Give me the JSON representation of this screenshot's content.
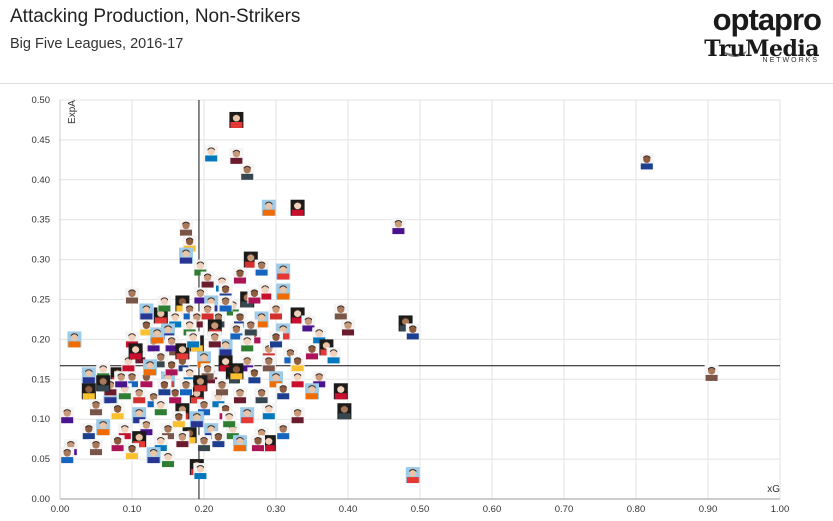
{
  "header": {
    "title": "Attacking Production, Non-Strikers",
    "subtitle": "Big Five Leagues, 2016-17",
    "brand_top": "optapro",
    "brand_mid": "TruMedia",
    "brand_bottom": "NETWORKS"
  },
  "chart_data": {
    "type": "scatter",
    "xlabel": "xG",
    "ylabel": "ExpA",
    "xlim": [
      0,
      1.0
    ],
    "ylim": [
      0,
      0.5
    ],
    "xticks": [
      "0.00",
      "0.10",
      "0.20",
      "0.30",
      "0.40",
      "0.50",
      "0.60",
      "0.70",
      "0.80",
      "0.90",
      "1.00"
    ],
    "yticks": [
      "0.00",
      "0.05",
      "0.10",
      "0.15",
      "0.20",
      "0.25",
      "0.30",
      "0.35",
      "0.40",
      "0.45",
      "0.50"
    ],
    "grid": true,
    "reference_lines": {
      "x": 0.193,
      "y": 0.167
    },
    "marker": "player-headshot",
    "points": [
      [
        0.245,
        0.475
      ],
      [
        0.21,
        0.433
      ],
      [
        0.245,
        0.43
      ],
      [
        0.26,
        0.41
      ],
      [
        0.815,
        0.423
      ],
      [
        0.29,
        0.365
      ],
      [
        0.33,
        0.365
      ],
      [
        0.47,
        0.342
      ],
      [
        0.175,
        0.34
      ],
      [
        0.18,
        0.32
      ],
      [
        0.175,
        0.305
      ],
      [
        0.195,
        0.29
      ],
      [
        0.265,
        0.3
      ],
      [
        0.28,
        0.29
      ],
      [
        0.25,
        0.28
      ],
      [
        0.31,
        0.285
      ],
      [
        0.225,
        0.27
      ],
      [
        0.205,
        0.275
      ],
      [
        0.26,
        0.25
      ],
      [
        0.23,
        0.26
      ],
      [
        0.31,
        0.26
      ],
      [
        0.285,
        0.26
      ],
      [
        0.195,
        0.255
      ],
      [
        0.1,
        0.255
      ],
      [
        0.17,
        0.245
      ],
      [
        0.21,
        0.245
      ],
      [
        0.24,
        0.24
      ],
      [
        0.3,
        0.235
      ],
      [
        0.18,
        0.235
      ],
      [
        0.12,
        0.23
      ],
      [
        0.14,
        0.23
      ],
      [
        0.16,
        0.225
      ],
      [
        0.19,
        0.225
      ],
      [
        0.22,
        0.225
      ],
      [
        0.25,
        0.225
      ],
      [
        0.28,
        0.225
      ],
      [
        0.33,
        0.23
      ],
      [
        0.345,
        0.22
      ],
      [
        0.39,
        0.235
      ],
      [
        0.12,
        0.215
      ],
      [
        0.15,
        0.21
      ],
      [
        0.18,
        0.215
      ],
      [
        0.215,
        0.215
      ],
      [
        0.245,
        0.21
      ],
      [
        0.27,
        0.205
      ],
      [
        0.31,
        0.21
      ],
      [
        0.36,
        0.205
      ],
      [
        0.4,
        0.215
      ],
      [
        0.48,
        0.22
      ],
      [
        0.49,
        0.21
      ],
      [
        0.02,
        0.2
      ],
      [
        0.1,
        0.2
      ],
      [
        0.13,
        0.195
      ],
      [
        0.16,
        0.19
      ],
      [
        0.19,
        0.195
      ],
      [
        0.23,
        0.19
      ],
      [
        0.26,
        0.195
      ],
      [
        0.29,
        0.185
      ],
      [
        0.32,
        0.18
      ],
      [
        0.35,
        0.185
      ],
      [
        0.37,
        0.19
      ],
      [
        0.38,
        0.18
      ],
      [
        0.11,
        0.18
      ],
      [
        0.14,
        0.175
      ],
      [
        0.17,
        0.17
      ],
      [
        0.2,
        0.175
      ],
      [
        0.23,
        0.17
      ],
      [
        0.26,
        0.17
      ],
      [
        0.29,
        0.17
      ],
      [
        0.33,
        0.17
      ],
      [
        0.04,
        0.155
      ],
      [
        0.06,
        0.16
      ],
      [
        0.08,
        0.155
      ],
      [
        0.1,
        0.15
      ],
      [
        0.12,
        0.15
      ],
      [
        0.15,
        0.15
      ],
      [
        0.18,
        0.155
      ],
      [
        0.21,
        0.155
      ],
      [
        0.24,
        0.155
      ],
      [
        0.27,
        0.155
      ],
      [
        0.3,
        0.15
      ],
      [
        0.33,
        0.15
      ],
      [
        0.36,
        0.15
      ],
      [
        0.905,
        0.158
      ],
      [
        0.04,
        0.135
      ],
      [
        0.07,
        0.13
      ],
      [
        0.09,
        0.135
      ],
      [
        0.11,
        0.13
      ],
      [
        0.13,
        0.125
      ],
      [
        0.16,
        0.13
      ],
      [
        0.19,
        0.13
      ],
      [
        0.22,
        0.125
      ],
      [
        0.25,
        0.13
      ],
      [
        0.28,
        0.13
      ],
      [
        0.31,
        0.135
      ],
      [
        0.35,
        0.135
      ],
      [
        0.39,
        0.135
      ],
      [
        0.01,
        0.105
      ],
      [
        0.05,
        0.115
      ],
      [
        0.08,
        0.11
      ],
      [
        0.11,
        0.105
      ],
      [
        0.14,
        0.115
      ],
      [
        0.17,
        0.11
      ],
      [
        0.2,
        0.115
      ],
      [
        0.23,
        0.11
      ],
      [
        0.26,
        0.105
      ],
      [
        0.29,
        0.11
      ],
      [
        0.33,
        0.105
      ],
      [
        0.395,
        0.11
      ],
      [
        0.04,
        0.085
      ],
      [
        0.06,
        0.09
      ],
      [
        0.09,
        0.085
      ],
      [
        0.12,
        0.09
      ],
      [
        0.15,
        0.085
      ],
      [
        0.18,
        0.08
      ],
      [
        0.21,
        0.085
      ],
      [
        0.24,
        0.085
      ],
      [
        0.28,
        0.08
      ],
      [
        0.31,
        0.085
      ],
      [
        0.08,
        0.07
      ],
      [
        0.11,
        0.075
      ],
      [
        0.14,
        0.07
      ],
      [
        0.17,
        0.075
      ],
      [
        0.2,
        0.07
      ],
      [
        0.22,
        0.075
      ],
      [
        0.25,
        0.07
      ],
      [
        0.29,
        0.07
      ],
      [
        0.015,
        0.065
      ],
      [
        0.05,
        0.065
      ],
      [
        0.1,
        0.06
      ],
      [
        0.13,
        0.055
      ],
      [
        0.15,
        0.05
      ],
      [
        0.19,
        0.04
      ],
      [
        0.01,
        0.055
      ],
      [
        0.275,
        0.07
      ],
      [
        0.49,
        0.03
      ],
      [
        0.195,
        0.035
      ],
      [
        0.07,
        0.14
      ],
      [
        0.06,
        0.145
      ],
      [
        0.145,
        0.14
      ],
      [
        0.125,
        0.165
      ],
      [
        0.095,
        0.17
      ],
      [
        0.155,
        0.195
      ],
      [
        0.205,
        0.16
      ],
      [
        0.245,
        0.16
      ],
      [
        0.12,
        0.235
      ],
      [
        0.145,
        0.245
      ],
      [
        0.205,
        0.235
      ],
      [
        0.23,
        0.245
      ],
      [
        0.27,
        0.255
      ],
      [
        0.17,
        0.185
      ],
      [
        0.185,
        0.2
      ],
      [
        0.215,
        0.2
      ],
      [
        0.265,
        0.215
      ],
      [
        0.3,
        0.2
      ],
      [
        0.135,
        0.205
      ],
      [
        0.105,
        0.185
      ],
      [
        0.085,
        0.15
      ],
      [
        0.225,
        0.14
      ],
      [
        0.165,
        0.1
      ],
      [
        0.19,
        0.1
      ],
      [
        0.235,
        0.1
      ],
      [
        0.195,
        0.145
      ],
      [
        0.175,
        0.14
      ],
      [
        0.155,
        0.165
      ]
    ]
  }
}
